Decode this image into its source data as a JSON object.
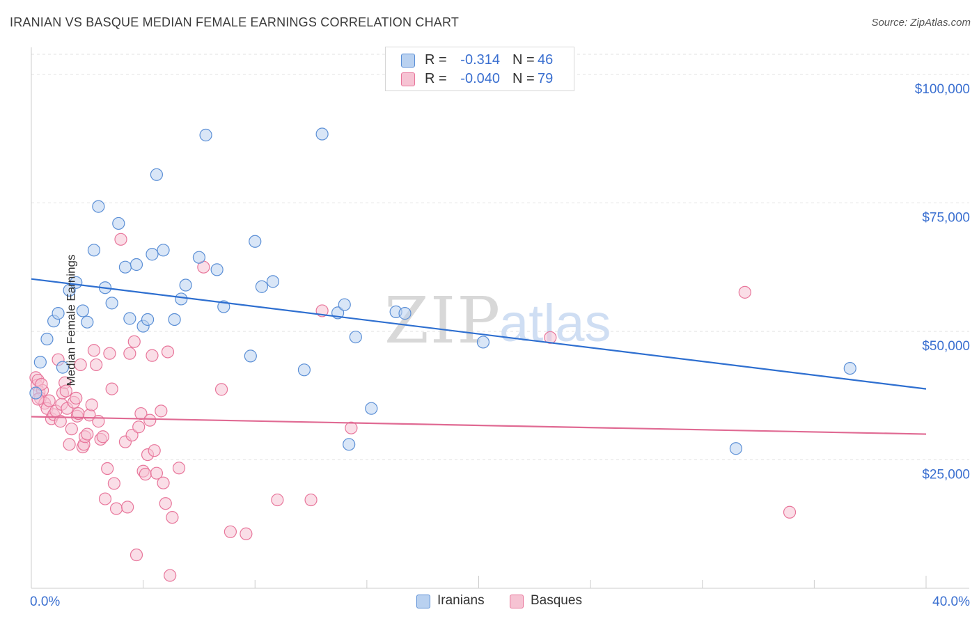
{
  "title": "IRANIAN VS BASQUE MEDIAN FEMALE EARNINGS CORRELATION CHART",
  "source": "Source: ZipAtlas.com",
  "watermark": {
    "zip": "ZIP",
    "atlas": "atlas"
  },
  "legend_top": {
    "rows": [
      {
        "r_label": "R =",
        "r_value": "-0.314",
        "n_label": "N =",
        "n_value": "46"
      },
      {
        "r_label": "R =",
        "r_value": "-0.040",
        "n_label": "N =",
        "n_value": "79"
      }
    ]
  },
  "legend_bottom": {
    "iranians": "Iranians",
    "basques": "Basques"
  },
  "chart_data": {
    "type": "scatter",
    "title": "IRANIAN VS BASQUE MEDIAN FEMALE EARNINGS CORRELATION CHART",
    "xlabel": "",
    "ylabel": "Median Female Earnings",
    "xlim": [
      0,
      40
    ],
    "ylim": [
      0,
      105000
    ],
    "x_tick_labels": {
      "left": "0.0%",
      "right": "40.0%"
    },
    "y_ticks": [
      {
        "value": 25000,
        "label": "$25,000"
      },
      {
        "value": 50000,
        "label": "$50,000"
      },
      {
        "value": 75000,
        "label": "$75,000"
      },
      {
        "value": 100000,
        "label": "$100,000"
      }
    ],
    "colors": {
      "iranians": "#5b8fd6",
      "basques": "#e8769b",
      "iranians_fill": "#b9d1f0",
      "basques_fill": "#f6c3d3",
      "iranians_line": "#2e6fd0",
      "basques_line": "#e06a93"
    },
    "series": [
      {
        "name": "Iranians",
        "trend": {
          "x0": 0,
          "y0": 60200,
          "x1": 40,
          "y1": 38800
        },
        "points": [
          [
            0.4,
            44000
          ],
          [
            0.7,
            48500
          ],
          [
            1.0,
            52000
          ],
          [
            1.2,
            53500
          ],
          [
            1.4,
            43000
          ],
          [
            1.7,
            58000
          ],
          [
            2.0,
            59500
          ],
          [
            2.3,
            54000
          ],
          [
            2.5,
            51800
          ],
          [
            2.8,
            65800
          ],
          [
            3.0,
            74300
          ],
          [
            3.3,
            58500
          ],
          [
            3.6,
            55500
          ],
          [
            3.9,
            71000
          ],
          [
            4.2,
            62500
          ],
          [
            4.4,
            52500
          ],
          [
            4.7,
            63000
          ],
          [
            5.0,
            51000
          ],
          [
            5.2,
            52300
          ],
          [
            5.4,
            65000
          ],
          [
            5.6,
            80500
          ],
          [
            5.9,
            65800
          ],
          [
            6.4,
            52300
          ],
          [
            6.7,
            56300
          ],
          [
            6.9,
            59000
          ],
          [
            7.5,
            64400
          ],
          [
            7.8,
            88200
          ],
          [
            8.3,
            62000
          ],
          [
            8.6,
            54800
          ],
          [
            9.8,
            45200
          ],
          [
            10.0,
            67500
          ],
          [
            10.3,
            58700
          ],
          [
            10.8,
            59700
          ],
          [
            12.2,
            42500
          ],
          [
            13.0,
            88400
          ],
          [
            13.7,
            53600
          ],
          [
            14.0,
            55200
          ],
          [
            14.2,
            28000
          ],
          [
            14.5,
            48900
          ],
          [
            15.2,
            35000
          ],
          [
            16.3,
            53800
          ],
          [
            16.7,
            53500
          ],
          [
            20.2,
            47900
          ],
          [
            31.5,
            27200
          ],
          [
            36.6,
            42800
          ],
          [
            0.2,
            38000
          ]
        ]
      },
      {
        "name": "Basques",
        "trend": {
          "x0": 0,
          "y0": 33400,
          "x1": 40,
          "y1": 30000
        },
        "points": [
          [
            0.2,
            41000
          ],
          [
            0.25,
            39500
          ],
          [
            0.3,
            40500
          ],
          [
            0.35,
            38200
          ],
          [
            0.4,
            37000
          ],
          [
            0.5,
            38500
          ],
          [
            0.6,
            36000
          ],
          [
            0.7,
            35000
          ],
          [
            0.8,
            36500
          ],
          [
            0.9,
            33000
          ],
          [
            1.0,
            33800
          ],
          [
            1.1,
            34500
          ],
          [
            1.2,
            44500
          ],
          [
            1.3,
            32500
          ],
          [
            1.35,
            35800
          ],
          [
            1.4,
            38000
          ],
          [
            1.5,
            40000
          ],
          [
            1.55,
            38400
          ],
          [
            1.6,
            35000
          ],
          [
            1.7,
            28000
          ],
          [
            1.8,
            31000
          ],
          [
            1.9,
            36200
          ],
          [
            2.0,
            37000
          ],
          [
            2.05,
            33500
          ],
          [
            2.1,
            34000
          ],
          [
            2.2,
            43500
          ],
          [
            2.3,
            27500
          ],
          [
            2.35,
            28000
          ],
          [
            2.4,
            29500
          ],
          [
            2.5,
            30000
          ],
          [
            2.6,
            33700
          ],
          [
            2.7,
            35700
          ],
          [
            2.8,
            46300
          ],
          [
            2.9,
            43500
          ],
          [
            3.0,
            32500
          ],
          [
            3.1,
            29000
          ],
          [
            3.2,
            29500
          ],
          [
            3.3,
            17400
          ],
          [
            3.4,
            23300
          ],
          [
            3.5,
            45700
          ],
          [
            3.6,
            38800
          ],
          [
            3.7,
            20400
          ],
          [
            3.8,
            15500
          ],
          [
            4.0,
            67900
          ],
          [
            4.2,
            28500
          ],
          [
            4.3,
            15800
          ],
          [
            4.4,
            45700
          ],
          [
            4.5,
            29800
          ],
          [
            4.6,
            48000
          ],
          [
            4.7,
            6500
          ],
          [
            4.8,
            31400
          ],
          [
            4.9,
            34000
          ],
          [
            5.0,
            22800
          ],
          [
            5.1,
            22200
          ],
          [
            5.2,
            26000
          ],
          [
            5.3,
            32700
          ],
          [
            5.4,
            45300
          ],
          [
            5.5,
            26800
          ],
          [
            5.6,
            22400
          ],
          [
            5.8,
            34500
          ],
          [
            5.9,
            20500
          ],
          [
            6.0,
            16500
          ],
          [
            6.1,
            46000
          ],
          [
            6.2,
            2500
          ],
          [
            6.3,
            13800
          ],
          [
            6.6,
            23400
          ],
          [
            7.7,
            62500
          ],
          [
            8.5,
            38700
          ],
          [
            8.9,
            11000
          ],
          [
            9.6,
            10600
          ],
          [
            11.0,
            17200
          ],
          [
            12.5,
            17200
          ],
          [
            13.0,
            54000
          ],
          [
            14.3,
            31200
          ],
          [
            23.2,
            48800
          ],
          [
            31.9,
            57600
          ],
          [
            33.9,
            14800
          ],
          [
            0.3,
            36800
          ],
          [
            0.45,
            39700
          ]
        ]
      }
    ]
  }
}
